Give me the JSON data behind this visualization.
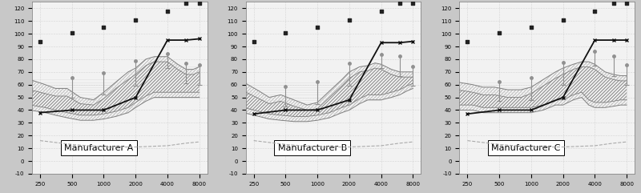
{
  "manufacturers": [
    "Manufacturer A",
    "Manufacturer B",
    "Manufacturer C"
  ],
  "ylim": [
    -10,
    125
  ],
  "yticks": [
    -10,
    0,
    10,
    20,
    30,
    40,
    50,
    60,
    70,
    80,
    90,
    100,
    110,
    120
  ],
  "bg_color": "#c8c8c8",
  "panel_bg": "#f2f2f2",
  "main_line": {
    "x": [
      250,
      500,
      1000,
      2000,
      4000,
      6000,
      8000
    ],
    "A": [
      38,
      40,
      40,
      50,
      95,
      95,
      96
    ],
    "B": [
      37,
      40,
      40,
      48,
      93,
      93,
      94
    ],
    "C": [
      37,
      40,
      40,
      50,
      95,
      95,
      95
    ]
  },
  "upper_band_x": [
    200,
    280,
    350,
    450,
    600,
    800,
    1000,
    1300,
    1700,
    2000,
    2500,
    3000,
    3500,
    4000,
    5000,
    6000,
    7000,
    8000
  ],
  "upper_band": {
    "A": [
      64,
      60,
      57,
      57,
      50,
      48,
      54,
      62,
      70,
      73,
      80,
      82,
      82,
      82,
      76,
      72,
      72,
      74
    ],
    "B": [
      62,
      55,
      50,
      52,
      48,
      44,
      46,
      55,
      64,
      70,
      74,
      75,
      77,
      76,
      72,
      70,
      70,
      70
    ],
    "C": [
      62,
      60,
      58,
      58,
      56,
      56,
      58,
      64,
      70,
      73,
      76,
      78,
      78,
      76,
      70,
      68,
      67,
      67
    ]
  },
  "lower_band": {
    "A": [
      40,
      38,
      36,
      34,
      32,
      32,
      33,
      35,
      38,
      42,
      47,
      50,
      50,
      50,
      50,
      50,
      50,
      50
    ],
    "B": [
      38,
      35,
      33,
      32,
      31,
      31,
      32,
      34,
      38,
      40,
      45,
      48,
      48,
      48,
      50,
      52,
      55,
      57
    ],
    "C": [
      40,
      40,
      38,
      38,
      38,
      38,
      38,
      40,
      44,
      44,
      48,
      50,
      44,
      42,
      42,
      43,
      44,
      44
    ]
  },
  "inner_upper": {
    "A": [
      56,
      53,
      51,
      51,
      45,
      44,
      49,
      57,
      64,
      68,
      75,
      78,
      78,
      78,
      72,
      68,
      68,
      70
    ],
    "B": [
      55,
      49,
      45,
      47,
      43,
      40,
      41,
      50,
      59,
      65,
      70,
      71,
      73,
      72,
      68,
      66,
      66,
      66
    ],
    "C": [
      56,
      54,
      52,
      52,
      50,
      50,
      53,
      59,
      65,
      68,
      72,
      74,
      74,
      72,
      66,
      64,
      63,
      63
    ]
  },
  "inner_lower": {
    "A": [
      44,
      42,
      40,
      38,
      36,
      36,
      37,
      39,
      42,
      46,
      51,
      54,
      54,
      54,
      54,
      54,
      54,
      54
    ],
    "B": [
      42,
      39,
      37,
      36,
      35,
      35,
      36,
      38,
      42,
      44,
      49,
      52,
      52,
      52,
      54,
      56,
      59,
      61
    ],
    "C": [
      44,
      44,
      42,
      42,
      42,
      42,
      42,
      44,
      48,
      48,
      52,
      54,
      48,
      46,
      46,
      47,
      48,
      48
    ]
  },
  "dotted_line": {
    "x": [
      250,
      500,
      1000,
      2000,
      4000,
      6000,
      8000
    ],
    "y": [
      16,
      13,
      11,
      11,
      12,
      14,
      15
    ]
  },
  "scatter_x": [
    250,
    500,
    1000,
    2000,
    4000,
    6000,
    8000
  ],
  "scatter_upper": {
    "A": [
      94,
      101,
      105,
      111,
      118,
      124,
      124
    ],
    "B": [
      94,
      101,
      105,
      111,
      118,
      124,
      124
    ],
    "C": [
      94,
      101,
      105,
      111,
      118,
      124,
      124
    ]
  },
  "error_bars": {
    "x": [
      500,
      1000,
      2000,
      4000,
      6000,
      8000
    ],
    "A_y": [
      57,
      60,
      68,
      80,
      68,
      67
    ],
    "A_lo": [
      7,
      8,
      9,
      7,
      7,
      7
    ],
    "A_hi": [
      7,
      8,
      9,
      3,
      7,
      7
    ],
    "B_y": [
      50,
      53,
      67,
      79,
      74,
      66
    ],
    "B_lo": [
      7,
      8,
      8,
      6,
      7,
      7
    ],
    "B_hi": [
      7,
      8,
      8,
      3,
      7,
      7
    ],
    "C_y": [
      54,
      56,
      68,
      82,
      74,
      67
    ],
    "C_lo": [
      7,
      8,
      8,
      7,
      7,
      7
    ],
    "C_hi": [
      7,
      8,
      8,
      3,
      7,
      7
    ]
  },
  "line_color": "#111111",
  "band_outer_color": "#c8c8c8",
  "band_inner_color": "#a0a0a0",
  "band_edge_color": "#808080",
  "scatter_color": "#222222",
  "dotted_color": "#aaaaaa",
  "error_color": "#909090",
  "label_fontsize": 8,
  "tick_fontsize": 5
}
